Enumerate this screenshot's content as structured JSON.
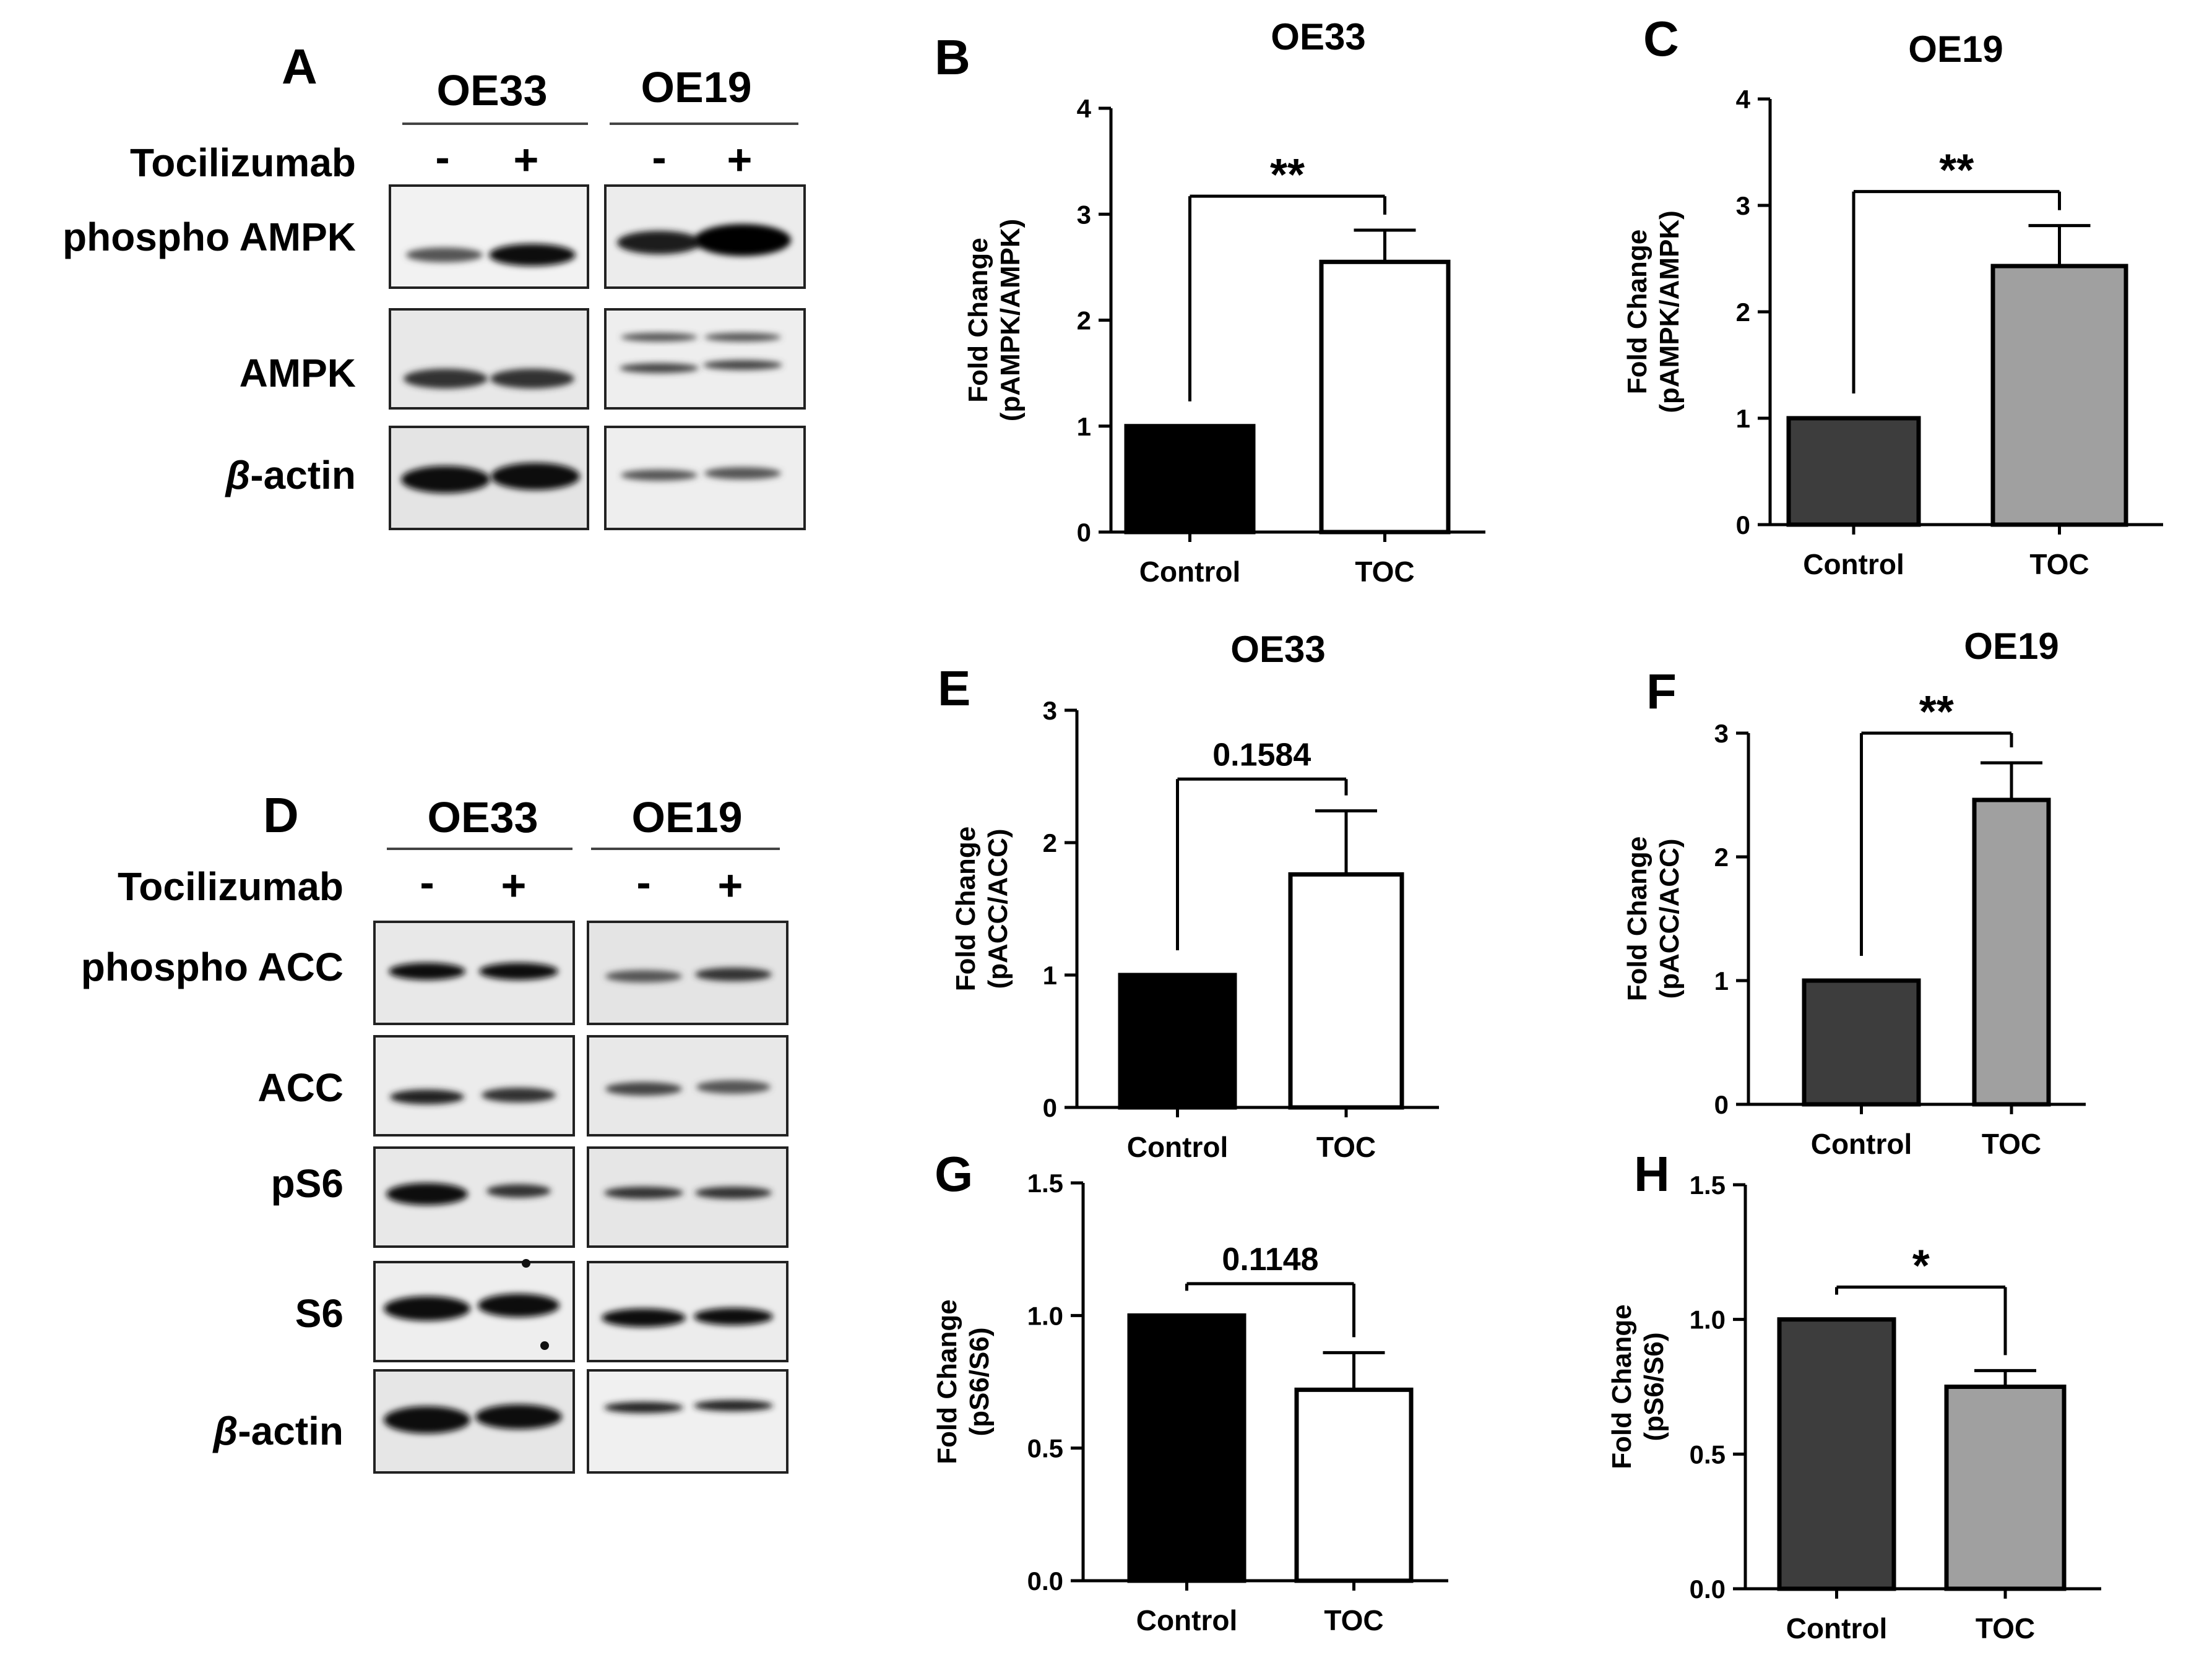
{
  "figure": {
    "panel_letters": [
      "A",
      "B",
      "C",
      "D",
      "E",
      "F",
      "G",
      "H"
    ],
    "blot_A": {
      "cell_lines": [
        "OE33",
        "OE19"
      ],
      "treatment_label": "Tocilizumab",
      "treatment_signs": [
        "-",
        "+",
        "-",
        "+"
      ],
      "rows": [
        "phospho AMPK",
        "AMPK",
        "-actin"
      ],
      "beta_symbol": "β"
    },
    "blot_D": {
      "cell_lines": [
        "OE33",
        "OE19"
      ],
      "treatment_label": "Tocilizumab",
      "treatment_signs": [
        "-",
        "+",
        "-",
        "+"
      ],
      "rows": [
        "phospho ACC",
        "ACC",
        "pS6",
        "S6",
        "-actin"
      ],
      "beta_symbol": "β"
    }
  },
  "colors": {
    "oe33_control": "#000000",
    "oe33_toc": "#ffffff",
    "oe19_control": "#3d3d3d",
    "oe19_toc": "#a0a0a0"
  },
  "chart_data": [
    {
      "panel": "B",
      "type": "bar",
      "title": "OE33",
      "categories": [
        "Control",
        "TOC"
      ],
      "values": [
        1.0,
        2.55
      ],
      "error": [
        0,
        0.3
      ],
      "ylabel": [
        "Fold Change",
        "(pAMPK/AMPK)"
      ],
      "ylim": [
        0,
        4
      ],
      "yticks": [
        "0",
        "1",
        "2",
        "3",
        "4"
      ],
      "significance": "**"
    },
    {
      "panel": "C",
      "type": "bar",
      "title": "OE19",
      "categories": [
        "Control",
        "TOC"
      ],
      "values": [
        1.0,
        2.43
      ],
      "error": [
        0,
        0.38
      ],
      "ylabel": [
        "Fold Change",
        "(pAMPK/AMPK)"
      ],
      "ylim": [
        0,
        4
      ],
      "yticks": [
        "0",
        "1",
        "2",
        "3",
        "4"
      ],
      "significance": "**"
    },
    {
      "panel": "E",
      "type": "bar",
      "title": "OE33",
      "categories": [
        "Control",
        "TOC"
      ],
      "values": [
        1.0,
        1.76
      ],
      "error": [
        0,
        0.48
      ],
      "ylabel": [
        "Fold Change",
        "(pACC/ACC)"
      ],
      "ylim": [
        0,
        3
      ],
      "yticks": [
        "0",
        "1",
        "2",
        "3"
      ],
      "significance": "0.1584"
    },
    {
      "panel": "F",
      "type": "bar",
      "title": "OE19",
      "categories": [
        "Control",
        "TOC"
      ],
      "values": [
        1.0,
        2.46
      ],
      "error": [
        0,
        0.3
      ],
      "ylabel": [
        "Fold Change",
        "(pACC/ACC)"
      ],
      "ylim": [
        0,
        3
      ],
      "yticks": [
        "0",
        "1",
        "2",
        "3"
      ],
      "significance": "**"
    },
    {
      "panel": "G",
      "type": "bar",
      "title": "",
      "categories": [
        "Control",
        "TOC"
      ],
      "values": [
        1.0,
        0.72
      ],
      "error": [
        0,
        0.14
      ],
      "ylabel": [
        "Fold Change",
        "(pS6/S6)"
      ],
      "ylim": [
        0,
        1.5
      ],
      "yticks": [
        "0.0",
        "0.5",
        "1.0",
        "1.5"
      ],
      "significance": "0.1148"
    },
    {
      "panel": "H",
      "type": "bar",
      "title": "",
      "categories": [
        "Control",
        "TOC"
      ],
      "values": [
        1.0,
        0.75
      ],
      "error": [
        0,
        0.06
      ],
      "ylabel": [
        "Fold Change",
        "(pS6/S6)"
      ],
      "ylim": [
        0,
        1.5
      ],
      "yticks": [
        "0.0",
        "0.5",
        "1.0",
        "1.5"
      ],
      "significance": "*"
    }
  ]
}
